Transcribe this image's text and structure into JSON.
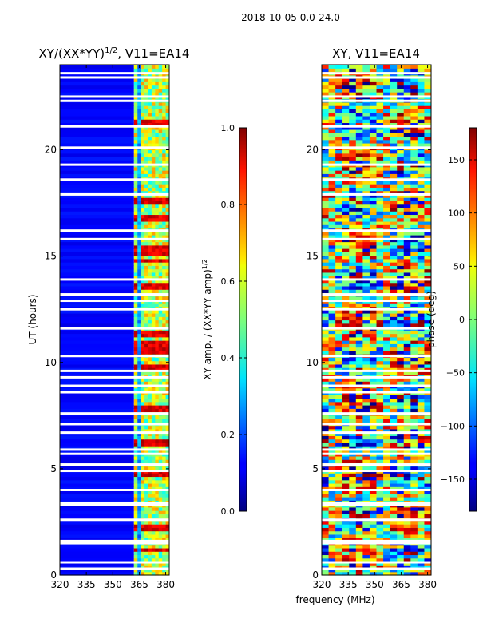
{
  "suptitle": "2018-10-05 0.0-24.0",
  "chart_data": [
    {
      "type": "heatmap",
      "title_main": "XY/(XX*YY)",
      "title_exponent": "1/2",
      "title_suffix": ", V11=EA14",
      "xlabel": "",
      "ylabel": "UT (hours)",
      "xlim": [
        320,
        382
      ],
      "ylim": [
        0,
        24
      ],
      "xticks": [
        "320",
        "335",
        "350",
        "365",
        "380"
      ],
      "xtick_values": [
        320,
        335,
        350,
        365,
        380
      ],
      "yticks": [
        "0",
        "5",
        "10",
        "15",
        "20"
      ],
      "ytick_values": [
        0,
        5,
        10,
        15,
        20
      ],
      "colormap": "jet",
      "colorbar": {
        "label_main": "XY amp. / (XX*YY amp)",
        "label_exponent": "1/2",
        "range": [
          0.0,
          1.0
        ],
        "ticks": [
          "0.0",
          "0.2",
          "0.4",
          "0.6",
          "0.8",
          "1.0"
        ],
        "tick_values": [
          0.0,
          0.2,
          0.4,
          0.6,
          0.8,
          1.0
        ]
      },
      "high_amplitude_ut": [
        1.2,
        2.3,
        4.8,
        6.3,
        7.8,
        9.8,
        10.6,
        10.9,
        11.3,
        13.6,
        14.8,
        15.2,
        15.4,
        16.8,
        17.6,
        21.3
      ]
    },
    {
      "type": "heatmap",
      "title": "XY, V11=EA14",
      "xlabel": "frequency (MHz)",
      "ylabel": "",
      "xlim": [
        320,
        382
      ],
      "ylim": [
        0,
        24
      ],
      "xticks": [
        "320",
        "335",
        "350",
        "365",
        "380"
      ],
      "xtick_values": [
        320,
        335,
        350,
        365,
        380
      ],
      "yticks": [
        "0",
        "5",
        "10",
        "15",
        "20"
      ],
      "ytick_values": [
        0,
        5,
        10,
        15,
        20
      ],
      "colormap": "jet",
      "colorbar": {
        "label": "phase (deg)",
        "range": [
          -180,
          180
        ],
        "ticks": [
          "−150",
          "−100",
          "−50",
          "0",
          "50",
          "100",
          "150"
        ],
        "tick_values": [
          -150,
          -100,
          -50,
          0,
          50,
          100,
          150
        ]
      }
    }
  ],
  "flagged_ut": [
    0.3,
    0.6,
    1.5,
    1.6,
    2.6,
    3.3,
    3.4,
    4.0,
    4.9,
    5.2,
    5.7,
    5.9,
    6.7,
    7.1,
    7.6,
    8.6,
    8.9,
    9.3,
    9.6,
    10.3,
    11.6,
    12.5,
    12.9,
    13.2,
    13.9,
    15.8,
    16.2,
    17.9,
    18.6,
    19.3,
    20.1,
    21.1,
    22.3,
    22.5,
    23.4,
    23.6
  ]
}
